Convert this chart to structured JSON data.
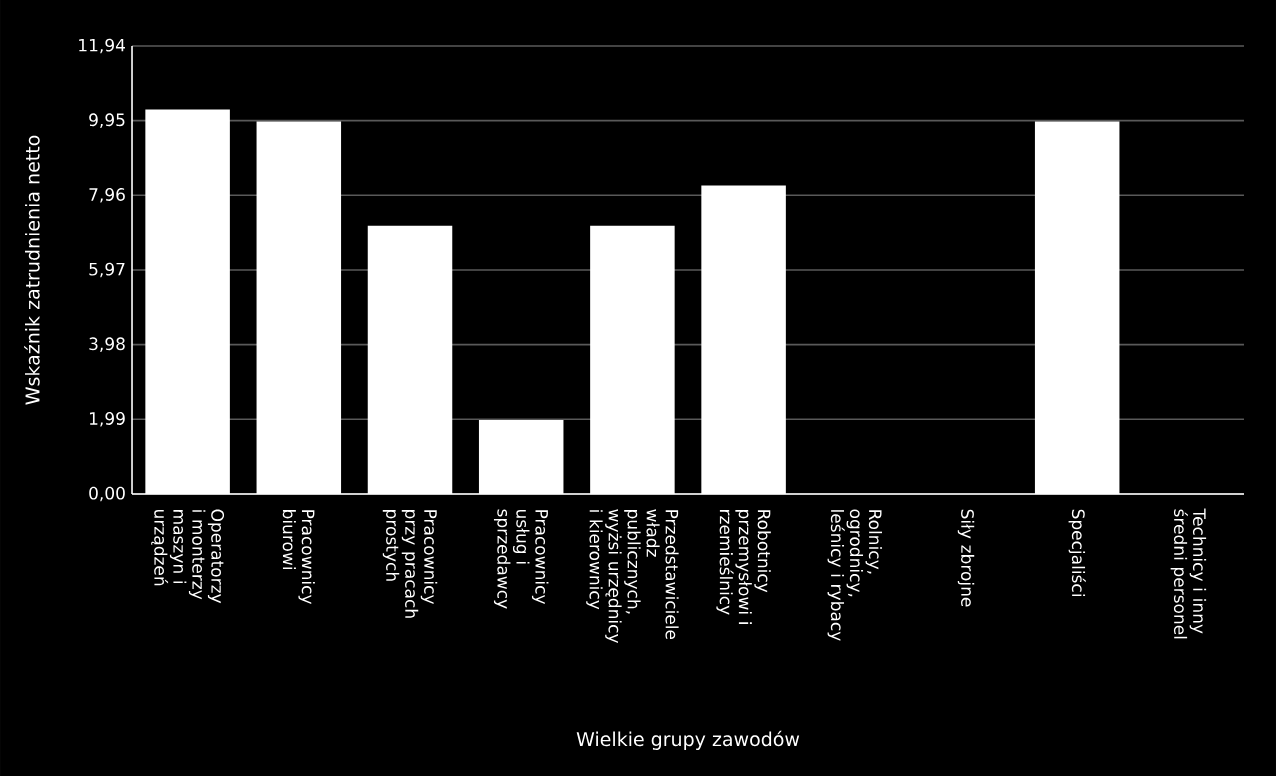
{
  "chart_data": {
    "type": "bar",
    "xlabel": "Wielkie grupy zawodów",
    "ylabel": "Wskaźnik zatrudnienia netto",
    "categories": [
      "Operatorzy i monterzy maszyn i urządzeń",
      "Pracownicy biurowi",
      "Pracownicy przy pracach prostych",
      "Pracownicy usług i sprzedawcy",
      "Przedstawiciele władz publicznych, wyżsi urzędnicy i kierownicy",
      "Robotnicy przemysłowi i rzemieślnicy",
      "Rolnicy, ogrodnicy, leśnicy i rybacy",
      "Siły zbrojne",
      "Specjaliści",
      "Technicy i inny średni personel"
    ],
    "values": [
      10.25,
      9.93,
      7.15,
      1.97,
      7.15,
      8.22,
      null,
      null,
      9.93,
      null
    ],
    "color": "#ffffff",
    "ylim": [
      0,
      11.94
    ],
    "yticks": [
      {
        "value": 0,
        "label": "0,00"
      },
      {
        "value": 1.99,
        "label": "1,99"
      },
      {
        "value": 3.98,
        "label": "3,98"
      },
      {
        "value": 5.97,
        "label": "5,97"
      },
      {
        "value": 7.96,
        "label": "7,96"
      },
      {
        "value": 9.95,
        "label": "9,95"
      },
      {
        "value": 11.94,
        "label": "11,94"
      }
    ],
    "grid": "y"
  }
}
